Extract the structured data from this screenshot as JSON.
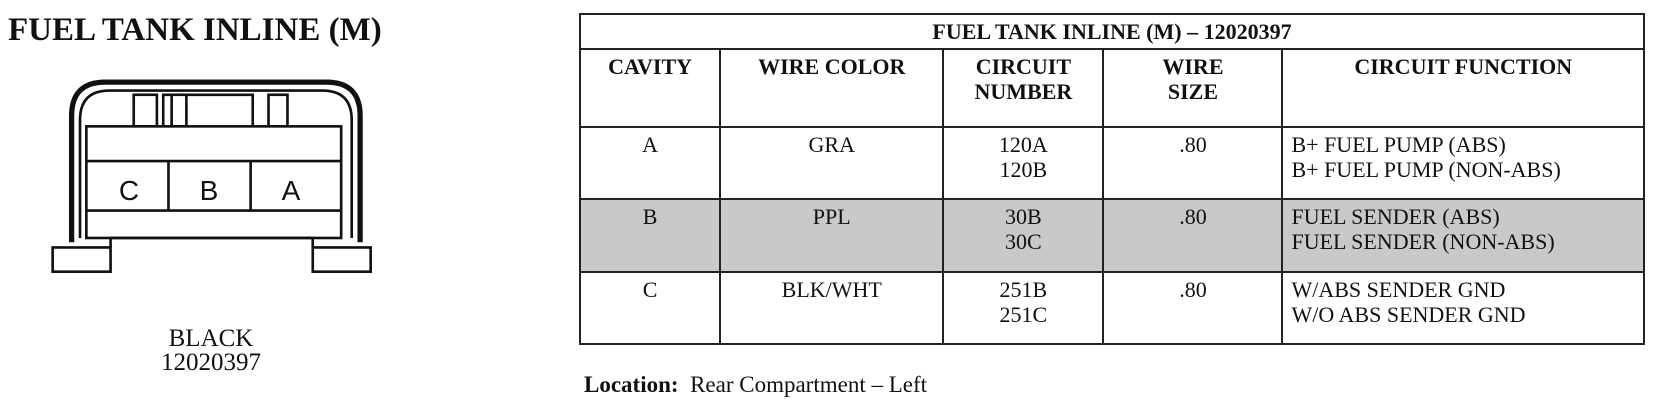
{
  "connector": {
    "title": "FUEL TANK INLINE (M)",
    "cavities": [
      "C",
      "B",
      "A"
    ],
    "color": "BLACK",
    "part_number": "12020397"
  },
  "table": {
    "title": "FUEL TANK INLINE (M) – 12020397",
    "headers": [
      [
        "CAVITY"
      ],
      [
        "WIRE COLOR"
      ],
      [
        "CIRCUIT",
        "NUMBER"
      ],
      [
        "WIRE",
        "SIZE"
      ],
      [
        "CIRCUIT FUNCTION"
      ]
    ],
    "rows": [
      [
        [
          "A"
        ],
        [
          "GRA"
        ],
        [
          "120A",
          "120B"
        ],
        [
          ".80"
        ],
        [
          "B+ FUEL PUMP (ABS)",
          "B+ FUEL PUMP (NON-ABS)"
        ]
      ],
      [
        [
          "B"
        ],
        [
          "PPL"
        ],
        [
          "30B",
          "30C"
        ],
        [
          ".80"
        ],
        [
          "FUEL SENDER (ABS)",
          "FUEL SENDER (NON-ABS)"
        ]
      ],
      [
        [
          "C"
        ],
        [
          "BLK/WHT"
        ],
        [
          "251B",
          "251C"
        ],
        [
          ".80"
        ],
        [
          "W/ABS SENDER GND",
          "W/O ABS SENDER GND"
        ]
      ]
    ]
  },
  "location": {
    "label": "Location:",
    "value": "Rear Compartment – Left"
  }
}
